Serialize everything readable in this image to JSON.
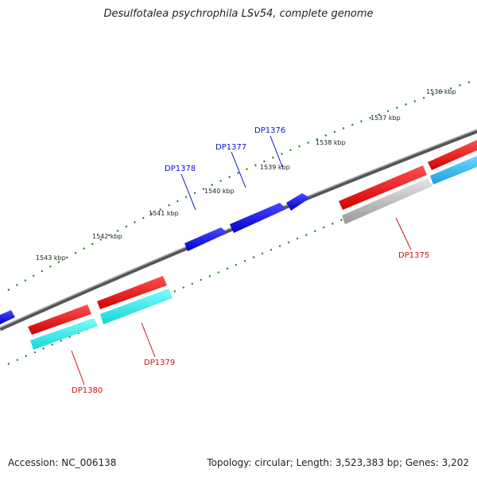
{
  "title": "Desulfotalea psychrophila LSv54, complete genome",
  "footer": {
    "accession": "Accession: NC_006138",
    "summary": "Topology: circular; Length: 3,523,383 bp; Genes: 3,202"
  },
  "colors": {
    "backbone": "#777777",
    "forward_cds": "#1010dd",
    "reverse_cds": "#ee1111",
    "reverse_rna": "#22e6e6",
    "rna_alt": "#33b7e6",
    "pseudo_rna": "#bbbbbb",
    "tick": "#118811",
    "forward_label": "#1010cc",
    "reverse_label": "#cc1111"
  },
  "kbp_labels": [
    "1536 kbp",
    "1537 kbp",
    "1538 kbp",
    "1539 kbp",
    "1540 kbp",
    "1541 kbp",
    "1542 kbp",
    "1543 kbp"
  ],
  "genes": {
    "forward": [
      "DP1376",
      "DP1377",
      "DP1378"
    ],
    "reverse": [
      "DP1375",
      "DP1379",
      "DP1380"
    ]
  }
}
